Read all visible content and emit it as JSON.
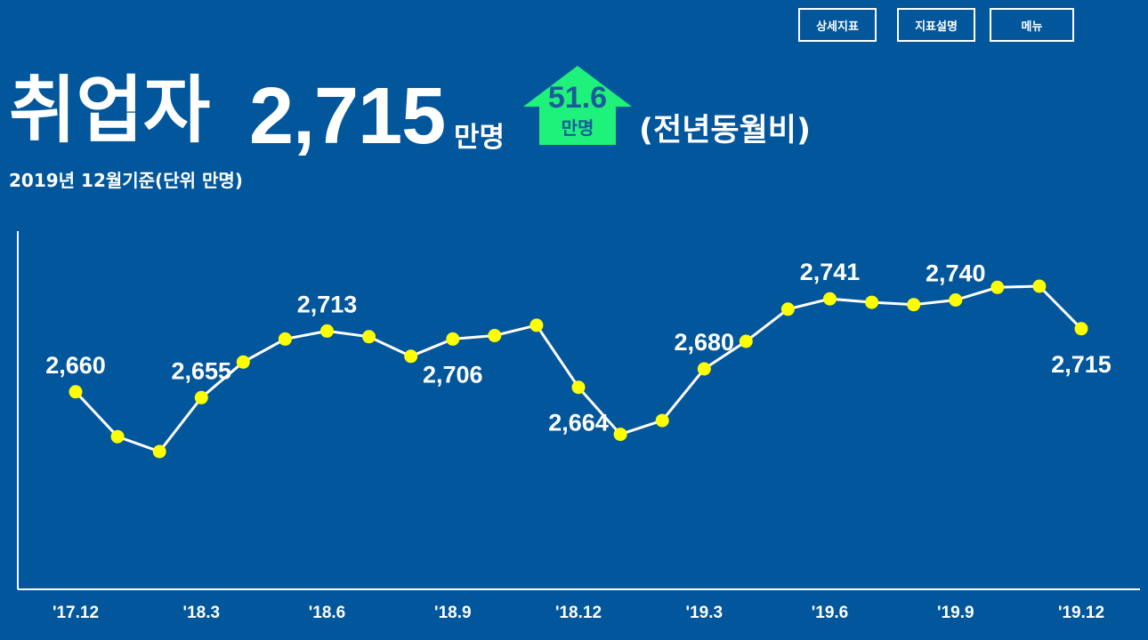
{
  "header": {
    "buttons": [
      {
        "label": "상세지표"
      },
      {
        "label": "지표설명"
      },
      {
        "label": "메뉴"
      }
    ]
  },
  "headline": {
    "label": "취업자",
    "value": "2,715",
    "unit": "만명",
    "change": {
      "value": "51.6",
      "unit": "만명",
      "direction": "up"
    },
    "comparison": "(전년동월비)"
  },
  "subtitle": "2019년 12월기준(단위 만명)",
  "icons": {
    "change_indicator": "up-arrow-icon"
  },
  "colors": {
    "background": "#02569b",
    "text": "#ffffff",
    "increase": "#1ef27a",
    "badge_text": "#1a5b9c",
    "line": "#ffffff",
    "marker": "#ffff00"
  },
  "chart_data": {
    "type": "line",
    "x_tick_labels": [
      "'17.12",
      "'18.3",
      "'18.6",
      "'18.9",
      "'18.12",
      "'19.3",
      "'19.6",
      "'19.9",
      "'19.12"
    ],
    "values": [
      2660,
      2621,
      2608,
      2655,
      2686,
      2706,
      2713,
      2708,
      2691,
      2706,
      2709,
      2718,
      2664,
      2623,
      2635,
      2680,
      2704,
      2732,
      2741,
      2738,
      2736,
      2740,
      2751,
      2752,
      2715
    ],
    "ylim": [
      2488,
      2800
    ],
    "grid": false,
    "data_labels": [
      {
        "index": 0,
        "text": "2,660",
        "position": "above"
      },
      {
        "index": 3,
        "text": "2,655",
        "position": "above"
      },
      {
        "index": 6,
        "text": "2,713",
        "position": "above"
      },
      {
        "index": 9,
        "text": "2,706",
        "position": "below"
      },
      {
        "index": 12,
        "text": "2,664",
        "position": "below"
      },
      {
        "index": 15,
        "text": "2,680",
        "position": "above"
      },
      {
        "index": 18,
        "text": "2,741",
        "position": "above"
      },
      {
        "index": 21,
        "text": "2,740",
        "position": "above"
      },
      {
        "index": 24,
        "text": "2,715",
        "position": "below"
      }
    ]
  }
}
